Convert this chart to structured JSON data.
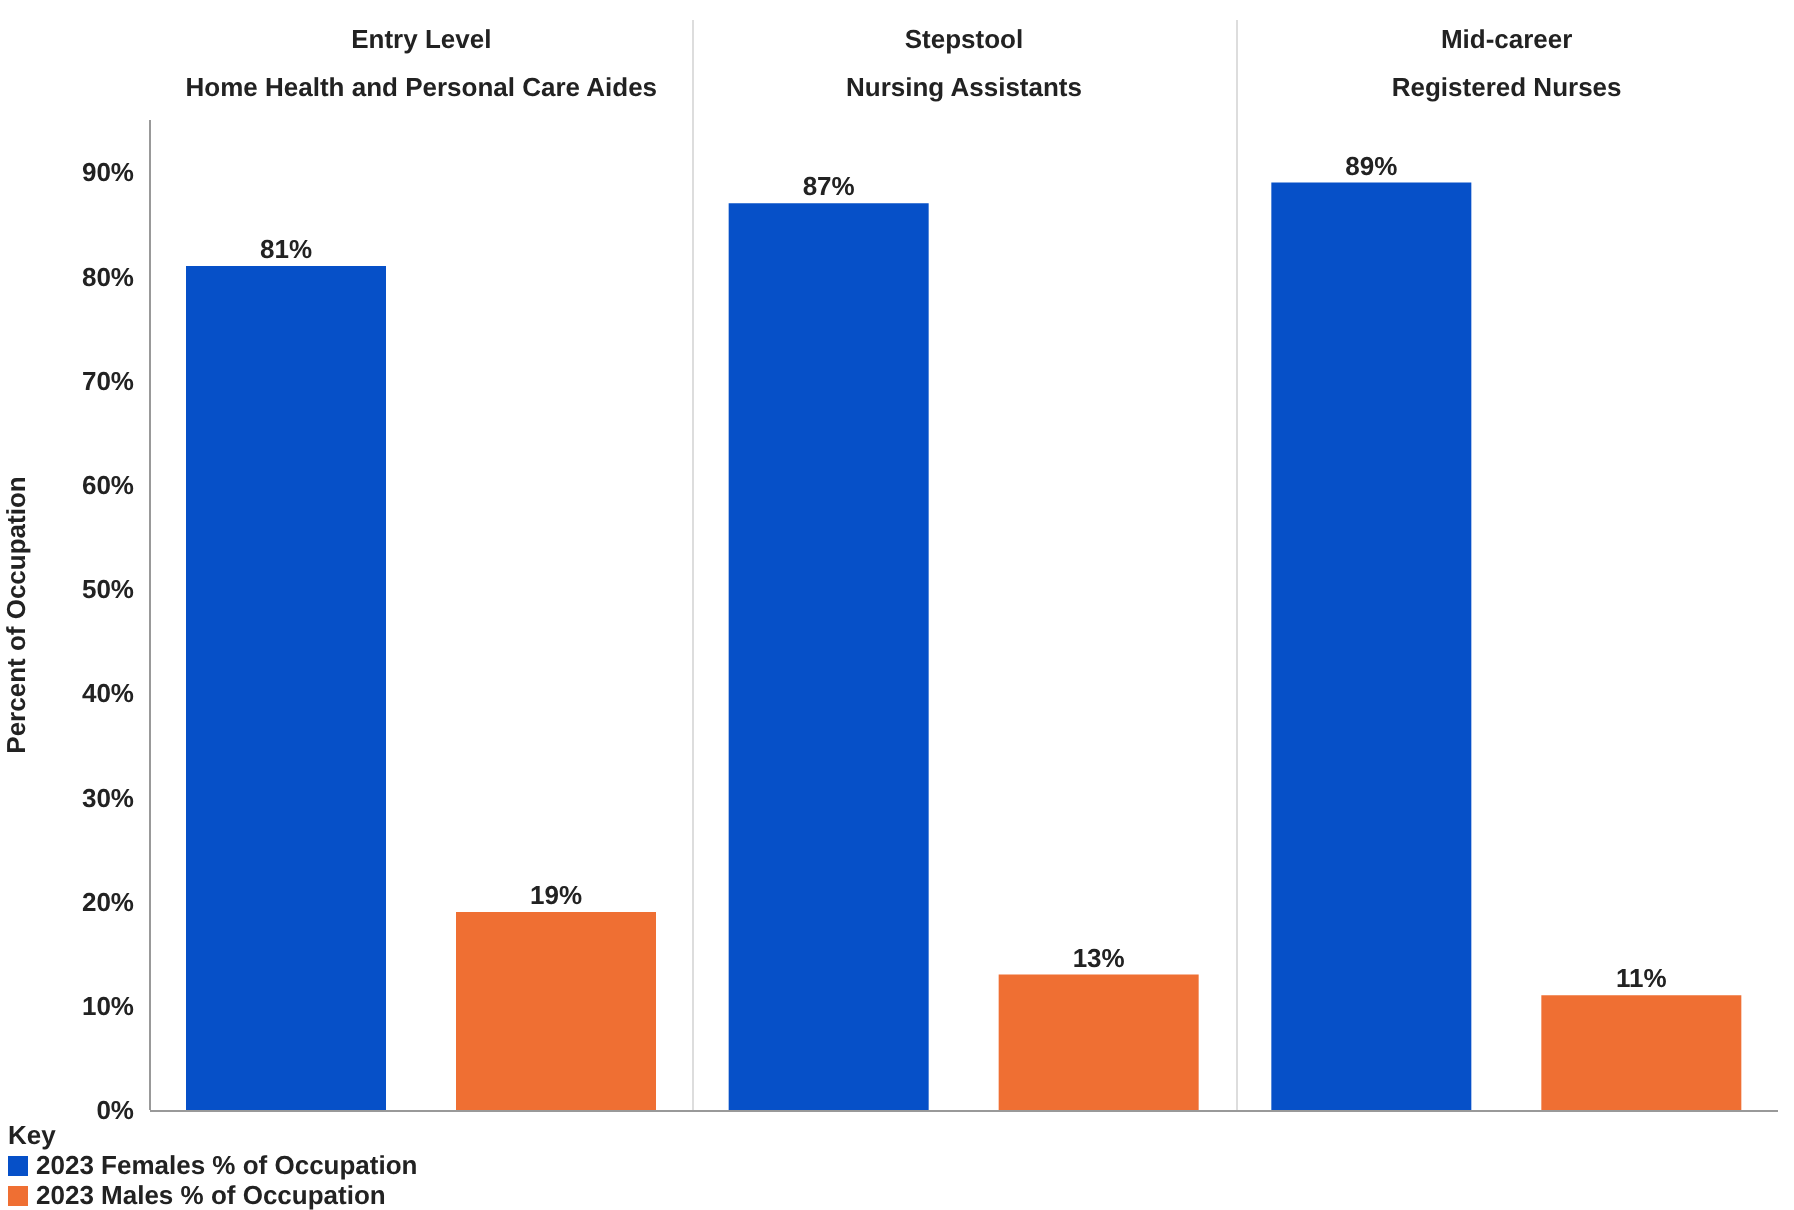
{
  "chart_data": {
    "type": "bar",
    "categories": [
      "Home Health and Personal Care Aides",
      "Nursing Assistants",
      "Registered Nurses"
    ],
    "annotations": [
      "Entry Level",
      "Stepstool",
      "Mid-career"
    ],
    "ylabel": "Percent of Occupation",
    "legend_title": "Key",
    "legend": "bottom left",
    "grid": false,
    "ylim": [
      0,
      95
    ],
    "yticks": [
      {
        "value": 0,
        "label": "0%"
      },
      {
        "value": 10,
        "label": "10%"
      },
      {
        "value": 20,
        "label": "20%"
      },
      {
        "value": 30,
        "label": "30%"
      },
      {
        "value": 40,
        "label": "40%"
      },
      {
        "value": 50,
        "label": "50%"
      },
      {
        "value": 60,
        "label": "60%"
      },
      {
        "value": 70,
        "label": "70%"
      },
      {
        "value": 80,
        "label": "80%"
      },
      {
        "value": 90,
        "label": "90%"
      }
    ],
    "series": [
      {
        "name": "2023 Females % of Occupation",
        "color": "#0650c8",
        "values": [
          81,
          87,
          89
        ],
        "value_labels": [
          "81%",
          "87%",
          "89%"
        ]
      },
      {
        "name": "2023 Males % of Occupation",
        "color": "#ef6f33",
        "values": [
          19,
          13,
          11
        ],
        "value_labels": [
          "19%",
          "13%",
          "11%"
        ]
      }
    ]
  }
}
